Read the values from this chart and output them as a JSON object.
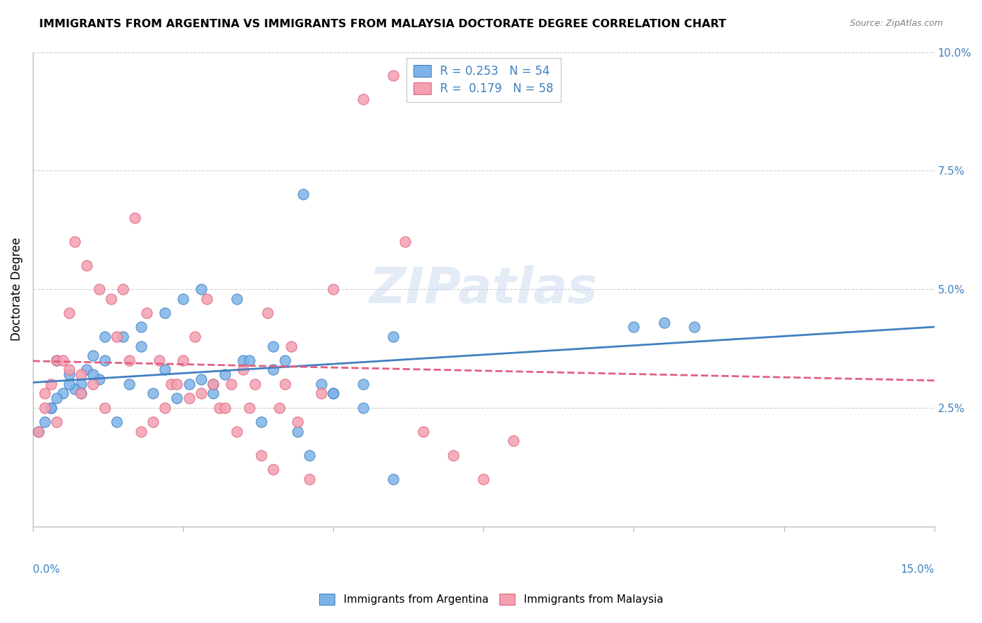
{
  "title": "IMMIGRANTS FROM ARGENTINA VS IMMIGRANTS FROM MALAYSIA DOCTORATE DEGREE CORRELATION CHART",
  "source": "Source: ZipAtlas.com",
  "ylabel": "Doctorate Degree",
  "xlim": [
    0.0,
    0.15
  ],
  "ylim": [
    0.0,
    0.1
  ],
  "ytick_vals": [
    0.025,
    0.05,
    0.075,
    0.1
  ],
  "ytick_labels": [
    "2.5%",
    "5.0%",
    "7.5%",
    "10.0%"
  ],
  "xtick_vals": [
    0.0,
    0.025,
    0.05,
    0.075,
    0.1,
    0.125,
    0.15
  ],
  "argentina_R": 0.253,
  "argentina_N": 54,
  "malaysia_R": 0.179,
  "malaysia_N": 58,
  "argentina_color": "#7eb3e8",
  "malaysia_color": "#f4a0b0",
  "argentina_line_color": "#4080c0",
  "malaysia_line_color": "#e06080",
  "legend1_label": "Immigrants from Argentina",
  "legend2_label": "Immigrants from Malaysia",
  "watermark": "ZIPatlas",
  "argentina_x": [
    0.008,
    0.005,
    0.012,
    0.003,
    0.006,
    0.004,
    0.002,
    0.001,
    0.009,
    0.011,
    0.015,
    0.007,
    0.01,
    0.018,
    0.022,
    0.025,
    0.028,
    0.03,
    0.035,
    0.04,
    0.045,
    0.05,
    0.055,
    0.06,
    0.003,
    0.004,
    0.006,
    0.008,
    0.01,
    0.012,
    0.014,
    0.016,
    0.018,
    0.02,
    0.022,
    0.024,
    0.026,
    0.028,
    0.03,
    0.032,
    0.034,
    0.036,
    0.038,
    0.04,
    0.042,
    0.044,
    0.046,
    0.048,
    0.05,
    0.055,
    0.06,
    0.1,
    0.105,
    0.11
  ],
  "argentina_y": [
    0.03,
    0.028,
    0.035,
    0.025,
    0.032,
    0.027,
    0.022,
    0.02,
    0.033,
    0.031,
    0.04,
    0.029,
    0.036,
    0.042,
    0.045,
    0.048,
    0.05,
    0.028,
    0.035,
    0.033,
    0.07,
    0.028,
    0.03,
    0.04,
    0.025,
    0.035,
    0.03,
    0.028,
    0.032,
    0.04,
    0.022,
    0.03,
    0.038,
    0.028,
    0.033,
    0.027,
    0.03,
    0.031,
    0.03,
    0.032,
    0.048,
    0.035,
    0.022,
    0.038,
    0.035,
    0.02,
    0.015,
    0.03,
    0.028,
    0.025,
    0.01,
    0.042,
    0.043,
    0.042
  ],
  "malaysia_x": [
    0.002,
    0.004,
    0.006,
    0.008,
    0.003,
    0.005,
    0.007,
    0.001,
    0.009,
    0.011,
    0.013,
    0.015,
    0.017,
    0.019,
    0.021,
    0.023,
    0.025,
    0.027,
    0.029,
    0.031,
    0.033,
    0.035,
    0.037,
    0.039,
    0.041,
    0.043,
    0.002,
    0.004,
    0.006,
    0.008,
    0.01,
    0.012,
    0.014,
    0.016,
    0.018,
    0.02,
    0.022,
    0.024,
    0.026,
    0.028,
    0.03,
    0.032,
    0.034,
    0.036,
    0.038,
    0.04,
    0.042,
    0.044,
    0.046,
    0.048,
    0.05,
    0.055,
    0.06,
    0.062,
    0.065,
    0.07,
    0.075,
    0.08
  ],
  "malaysia_y": [
    0.028,
    0.035,
    0.045,
    0.032,
    0.03,
    0.035,
    0.06,
    0.02,
    0.055,
    0.05,
    0.048,
    0.05,
    0.065,
    0.045,
    0.035,
    0.03,
    0.035,
    0.04,
    0.048,
    0.025,
    0.03,
    0.033,
    0.03,
    0.045,
    0.025,
    0.038,
    0.025,
    0.022,
    0.033,
    0.028,
    0.03,
    0.025,
    0.04,
    0.035,
    0.02,
    0.022,
    0.025,
    0.03,
    0.027,
    0.028,
    0.03,
    0.025,
    0.02,
    0.025,
    0.015,
    0.012,
    0.03,
    0.022,
    0.01,
    0.028,
    0.05,
    0.09,
    0.095,
    0.06,
    0.02,
    0.015,
    0.01,
    0.018
  ]
}
